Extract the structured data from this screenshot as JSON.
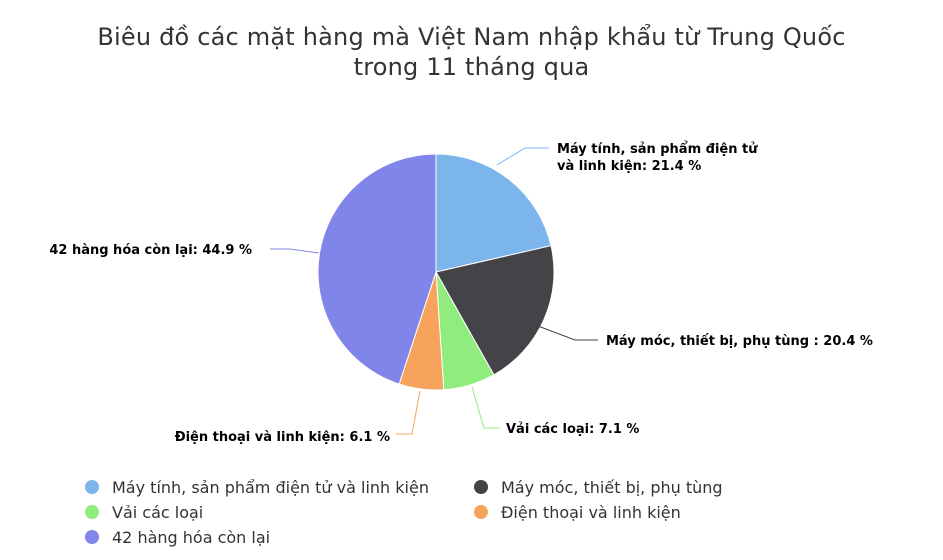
{
  "chart_data": {
    "type": "pie",
    "title_line1": "Biêu đồ các mặt hàng mà Việt Nam nhập khẩu từ Trung Quốc",
    "title_line2": "trong 11 tháng qua",
    "unit": "%",
    "slices": [
      {
        "name": "Máy tính, sản phẩm điện tử và linh kiện",
        "label_line1": "Máy tính, sản phẩm điện tử",
        "label_line2": "và linh kiện: 21.4 %",
        "value": 21.4,
        "color": "#7cb5ec"
      },
      {
        "name": "Máy móc, thiết bị, phụ tùng",
        "label_line1": "Máy móc, thiết bị, phụ tùng : 20.4 %",
        "label_line2": "",
        "value": 20.4,
        "color": "#434348"
      },
      {
        "name": "Vải các loại",
        "label_line1": "Vải các loại: 7.1 %",
        "label_line2": "",
        "value": 7.1,
        "color": "#90ed7d"
      },
      {
        "name": "Điện thoại và linh kiện",
        "label_line1": "Điện thoại và linh kiện: 6.1 %",
        "label_line2": "",
        "value": 6.1,
        "color": "#f7a35c"
      },
      {
        "name": "42 hàng hóa còn lại",
        "label_line1": "42 hàng hóa còn lại: 44.9 %",
        "label_line2": "",
        "value": 44.9,
        "color": "#8085e9"
      }
    ],
    "legend_position": "bottom-left"
  }
}
